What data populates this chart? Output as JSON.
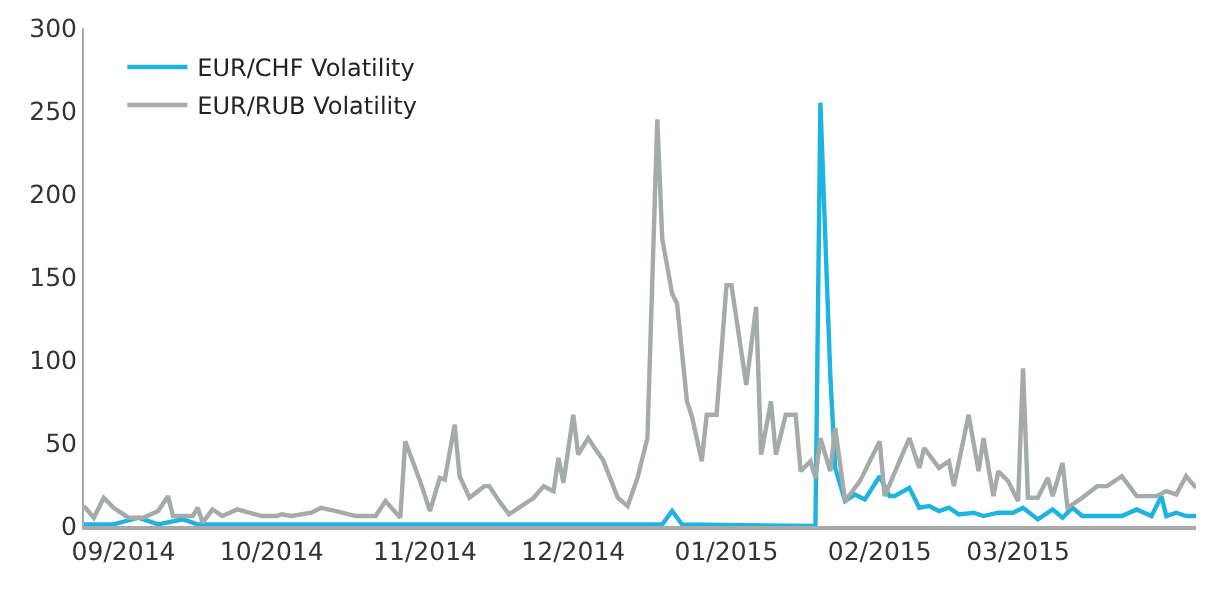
{
  "chart_data": {
    "type": "line",
    "xlim": [
      "2014-08-24",
      "2015-04-06"
    ],
    "xticks": [
      {
        "value": "2014-09-01",
        "label": "09/2014"
      },
      {
        "value": "2014-10-01",
        "label": "10/2014"
      },
      {
        "value": "2014-11-01",
        "label": "11/2014"
      },
      {
        "value": "2014-12-01",
        "label": "12/2014"
      },
      {
        "value": "2015-01-01",
        "label": "01/2015"
      },
      {
        "value": "2015-02-01",
        "label": "02/2015"
      },
      {
        "value": "2015-03-01",
        "label": "03/2015"
      }
    ],
    "ylim": [
      0,
      300
    ],
    "yticks": [
      0,
      50,
      100,
      150,
      200,
      250,
      300
    ],
    "grid": false,
    "legend": "top left",
    "marker": "none",
    "line_style": "solid",
    "series": [
      {
        "name": "EUR/CHF Volatility",
        "color": "#1fb3e0",
        "x": [
          "2014-08-24",
          "2014-08-30",
          "2014-09-04",
          "2014-09-08",
          "2014-09-13",
          "2014-09-16",
          "2014-10-06",
          "2014-10-27",
          "2014-11-16",
          "2014-12-06",
          "2014-12-19",
          "2014-12-21",
          "2014-12-23",
          "2015-01-19",
          "2015-01-20",
          "2015-01-22",
          "2015-01-23",
          "2015-01-25",
          "2015-01-27",
          "2015-01-29",
          "2015-02-01",
          "2015-02-03",
          "2015-02-04",
          "2015-02-07",
          "2015-02-09",
          "2015-02-11",
          "2015-02-13",
          "2015-02-15",
          "2015-02-17",
          "2015-02-20",
          "2015-02-22",
          "2015-02-25",
          "2015-02-28",
          "2015-03-02",
          "2015-03-05",
          "2015-03-08",
          "2015-03-10",
          "2015-03-12",
          "2015-03-14",
          "2015-03-18",
          "2015-03-22",
          "2015-03-25",
          "2015-03-28",
          "2015-03-30",
          "2015-03-31",
          "2015-04-02",
          "2015-04-04",
          "2015-04-06"
        ],
        "values": [
          1,
          1,
          5,
          1,
          4,
          1,
          1,
          1,
          1,
          1,
          1,
          9,
          1,
          0,
          255,
          91,
          35,
          15,
          19,
          16,
          30,
          18,
          18,
          23,
          11,
          12,
          9,
          11,
          7,
          8,
          6,
          8,
          8,
          11,
          4,
          10,
          5,
          11,
          6,
          6,
          6,
          10,
          6,
          18,
          6,
          8,
          6,
          6
        ]
      },
      {
        "name": "EUR/RUB Volatility",
        "color": "#a5aaaa",
        "x": [
          "2014-08-24",
          "2014-08-26",
          "2014-08-28",
          "2014-08-30",
          "2014-09-02",
          "2014-09-05",
          "2014-09-08",
          "2014-09-10",
          "2014-09-11",
          "2014-09-15",
          "2014-09-16",
          "2014-09-17",
          "2014-09-19",
          "2014-09-21",
          "2014-09-24",
          "2014-09-29",
          "2014-10-02",
          "2014-10-03",
          "2014-10-05",
          "2014-10-09",
          "2014-10-11",
          "2014-10-14",
          "2014-10-18",
          "2014-10-22",
          "2014-10-24",
          "2014-10-27",
          "2014-10-28",
          "2014-10-31",
          "2014-11-02",
          "2014-11-04",
          "2014-11-05",
          "2014-11-07",
          "2014-11-08",
          "2014-11-10",
          "2014-11-13",
          "2014-11-14",
          "2014-11-16",
          "2014-11-18",
          "2014-11-23",
          "2014-11-25",
          "2014-11-27",
          "2014-11-28",
          "2014-11-29",
          "2014-12-01",
          "2014-12-02",
          "2014-12-04",
          "2014-12-06",
          "2014-12-07",
          "2014-12-10",
          "2014-12-12",
          "2014-12-14",
          "2014-12-16",
          "2014-12-18",
          "2014-12-19",
          "2014-12-21",
          "2014-12-22",
          "2014-12-24",
          "2014-12-25",
          "2014-12-27",
          "2014-12-28",
          "2014-12-30",
          "2015-01-01",
          "2015-01-02",
          "2015-01-05",
          "2015-01-07",
          "2015-01-08",
          "2015-01-10",
          "2015-01-11",
          "2015-01-13",
          "2015-01-15",
          "2015-01-16",
          "2015-01-18",
          "2015-01-19",
          "2015-01-20",
          "2015-01-22",
          "2015-01-23",
          "2015-01-25",
          "2015-01-28",
          "2015-02-01",
          "2015-02-02",
          "2015-02-07",
          "2015-02-09",
          "2015-02-10",
          "2015-02-13",
          "2015-02-15",
          "2015-02-16",
          "2015-02-19",
          "2015-02-21",
          "2015-02-22",
          "2015-02-24",
          "2015-02-25",
          "2015-02-27",
          "2015-03-01",
          "2015-03-02",
          "2015-03-03",
          "2015-03-05",
          "2015-03-07",
          "2015-03-08",
          "2015-03-10",
          "2015-03-11",
          "2015-03-14",
          "2015-03-17",
          "2015-03-19",
          "2015-03-22",
          "2015-03-25",
          "2015-03-29",
          "2015-03-31",
          "2015-04-02",
          "2015-04-04",
          "2015-04-06"
        ],
        "values": [
          12,
          5,
          17,
          11,
          5,
          5,
          9,
          18,
          6,
          6,
          11,
          2,
          10,
          6,
          10,
          6,
          6,
          7,
          6,
          8,
          11,
          9,
          6,
          6,
          15,
          5,
          51,
          27,
          9,
          29,
          28,
          61,
          30,
          17,
          24,
          24,
          15,
          7,
          17,
          24,
          21,
          41,
          26,
          67,
          43,
          53,
          44,
          40,
          17,
          12,
          29,
          53,
          245,
          173,
          140,
          134,
          75,
          66,
          39,
          67,
          67,
          145,
          145,
          85,
          132,
          43,
          75,
          43,
          67,
          67,
          33,
          39,
          29,
          53,
          33,
          59,
          15,
          27,
          51,
          18,
          53,
          35,
          47,
          35,
          39,
          24,
          67,
          33,
          53,
          18,
          33,
          27,
          15,
          95,
          17,
          17,
          29,
          18,
          38,
          11,
          17,
          24,
          24,
          30,
          18,
          18,
          21,
          19,
          30,
          23
        ]
      }
    ]
  }
}
